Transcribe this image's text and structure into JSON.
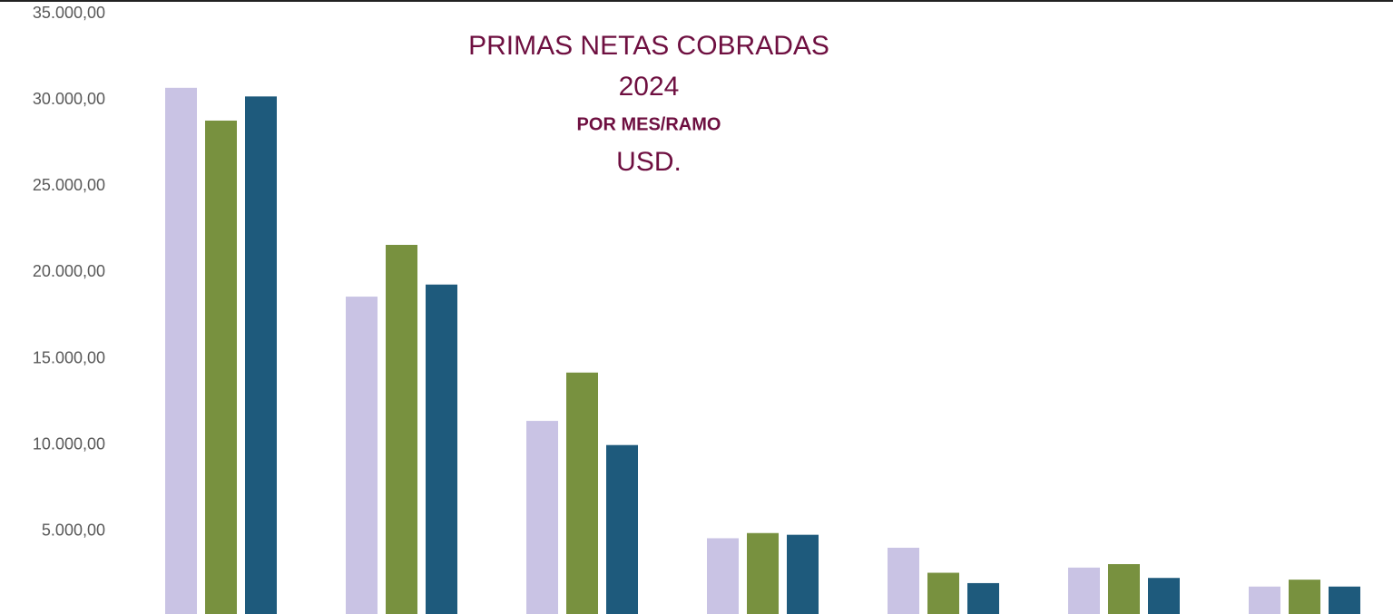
{
  "chart_data": {
    "type": "bar",
    "title_lines": [
      "PRIMAS NETAS COBRADAS",
      "2024",
      "POR MES/RAMO",
      "USD."
    ],
    "categories": [
      null,
      null,
      null,
      null,
      null,
      null,
      null
    ],
    "series": [
      {
        "color": "#c9c3e4",
        "values": [
          30700,
          18600,
          11400,
          4600,
          4050,
          2900,
          1800
        ]
      },
      {
        "color": "#78913f",
        "values": [
          28800,
          21600,
          14200,
          4900,
          2600,
          3100,
          2200
        ]
      },
      {
        "color": "#1e5a7c",
        "values": [
          30200,
          19300,
          10000,
          4800,
          2000,
          2300,
          1800
        ]
      }
    ],
    "ylim": [
      0,
      35000
    ],
    "yticks": [
      {
        "value": 5000,
        "label": "5.000,00"
      },
      {
        "value": 10000,
        "label": "10.000,00"
      },
      {
        "value": 15000,
        "label": "15.000,00"
      },
      {
        "value": 20000,
        "label": "20.000,00"
      },
      {
        "value": 25000,
        "label": "25.000,00"
      },
      {
        "value": 30000,
        "label": "30.000,00"
      },
      {
        "value": 35000,
        "label": "35.000,00"
      }
    ],
    "grid": false
  }
}
